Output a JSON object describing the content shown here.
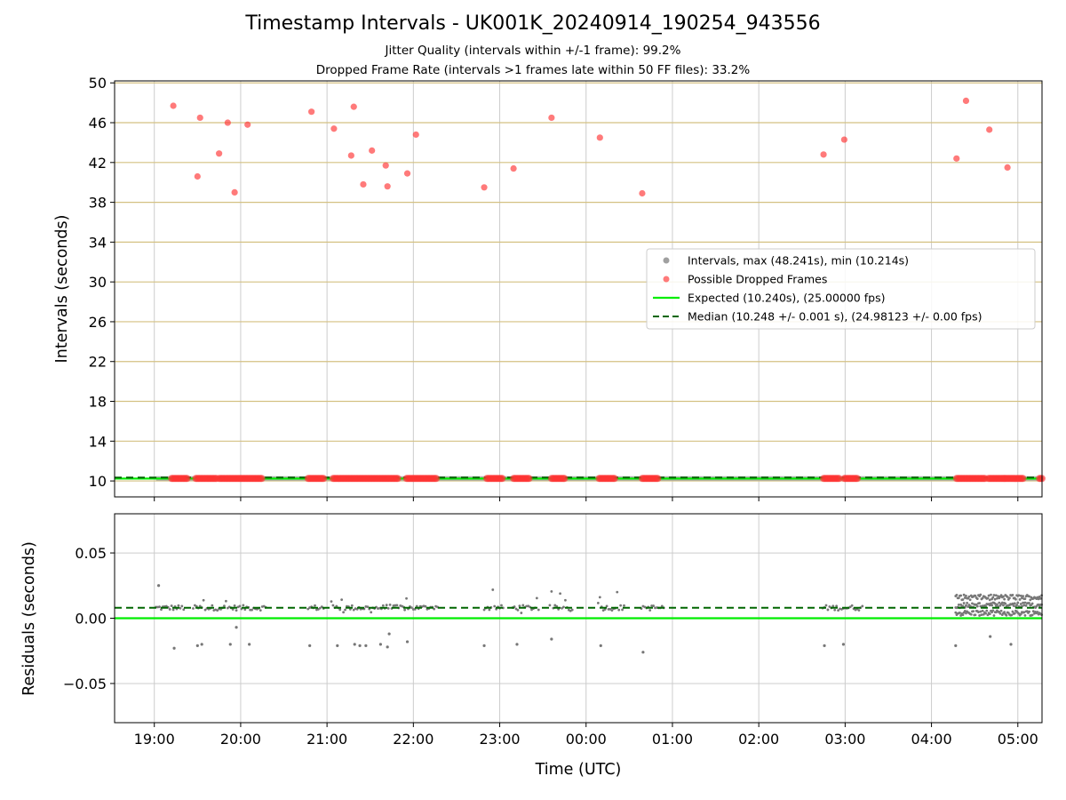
{
  "title": "Timestamp Intervals - UK001K_20240914_190254_943556",
  "subtitle_1": "Jitter Quality (intervals within +/-1 frame): 99.2%",
  "subtitle_2": "Dropped Frame Rate (intervals >1 frames late within 50 FF files): 33.2%",
  "colors": {
    "intervals": "#a0a0a0",
    "dropped": "#ff3333",
    "expected": "#00ee00",
    "median": "#006600",
    "residual_points": "#777777",
    "hgrid_top": "#d4c182",
    "grid": "#cccccc"
  },
  "chart_data": [
    {
      "type": "scatter",
      "panel": "top",
      "xlabel": "",
      "ylabel": "Intervals (seconds)",
      "x_unit": "hours after 19:00 UTC",
      "xlim": [
        -0.46,
        10.28
      ],
      "ylim": [
        8.4,
        50.2
      ],
      "yticks": [
        10,
        14,
        18,
        22,
        26,
        30,
        34,
        38,
        42,
        46,
        50
      ],
      "legend_position": "center-right",
      "legend": [
        {
          "label": "Intervals, max (48.241s), min (10.214s)",
          "marker": "grey-dot"
        },
        {
          "label": "Possible Dropped Frames",
          "marker": "red-dot"
        },
        {
          "label": "Expected (10.240s), (25.00000 fps)",
          "marker": "green-line"
        },
        {
          "label": "Median (10.248 +/- 0.001 s), (24.98123 +/- 0.00 fps)",
          "marker": "green-dashed"
        }
      ],
      "expected": 10.24,
      "median": 10.248,
      "interval_band": {
        "x_start": 0.02,
        "x_end": 10.28,
        "value": 10.25
      },
      "dropped_frames": [
        {
          "x": 0.22,
          "y": 47.7
        },
        {
          "x": 0.5,
          "y": 40.6
        },
        {
          "x": 0.53,
          "y": 46.5
        },
        {
          "x": 0.75,
          "y": 42.9
        },
        {
          "x": 0.85,
          "y": 46.0
        },
        {
          "x": 0.93,
          "y": 39.0
        },
        {
          "x": 1.08,
          "y": 45.8
        },
        {
          "x": 1.82,
          "y": 47.1
        },
        {
          "x": 2.08,
          "y": 45.4
        },
        {
          "x": 2.28,
          "y": 42.7
        },
        {
          "x": 2.31,
          "y": 47.6
        },
        {
          "x": 2.42,
          "y": 39.8
        },
        {
          "x": 2.52,
          "y": 43.2
        },
        {
          "x": 2.68,
          "y": 41.7
        },
        {
          "x": 2.7,
          "y": 39.6
        },
        {
          "x": 2.93,
          "y": 40.9
        },
        {
          "x": 3.03,
          "y": 44.8
        },
        {
          "x": 3.82,
          "y": 39.5
        },
        {
          "x": 4.16,
          "y": 41.4
        },
        {
          "x": 4.6,
          "y": 46.5
        },
        {
          "x": 5.16,
          "y": 44.5
        },
        {
          "x": 5.65,
          "y": 38.9
        },
        {
          "x": 7.75,
          "y": 42.8
        },
        {
          "x": 7.99,
          "y": 44.3
        },
        {
          "x": 9.29,
          "y": 42.4
        },
        {
          "x": 9.4,
          "y": 48.2
        },
        {
          "x": 9.67,
          "y": 45.3
        },
        {
          "x": 9.88,
          "y": 41.5
        }
      ],
      "dropped_near_expected_segments": [
        [
          0.2,
          0.38
        ],
        [
          0.48,
          0.72
        ],
        [
          0.75,
          1.25
        ],
        [
          1.78,
          1.97
        ],
        [
          2.07,
          2.27
        ],
        [
          2.28,
          2.83
        ],
        [
          2.92,
          3.27
        ],
        [
          3.85,
          4.03
        ],
        [
          4.16,
          4.35
        ],
        [
          4.6,
          4.75
        ],
        [
          5.15,
          5.33
        ],
        [
          5.65,
          5.83
        ],
        [
          7.75,
          7.93
        ],
        [
          7.99,
          8.14
        ],
        [
          9.29,
          9.62
        ],
        [
          9.66,
          9.85
        ],
        [
          9.85,
          10.06
        ],
        [
          10.25,
          10.28
        ]
      ]
    },
    {
      "type": "scatter",
      "panel": "bottom",
      "xlabel": "Time (UTC)",
      "ylabel": "Residuals (seconds)",
      "x_unit": "hours after 19:00 UTC",
      "xlim": [
        -0.46,
        10.28
      ],
      "ylim": [
        -0.08,
        0.08
      ],
      "yticks": [
        -0.05,
        0.0,
        0.05
      ],
      "ytick_labels": [
        "−0.05",
        "0.00",
        "0.05"
      ],
      "xtick_labels": [
        "19:00",
        "20:00",
        "21:00",
        "22:00",
        "23:00",
        "00:00",
        "01:00",
        "02:00",
        "03:00",
        "04:00",
        "05:00"
      ],
      "expected_residual": 0.0,
      "median_residual": 0.008,
      "clusters": [
        {
          "x_start": 0.02,
          "x_end": 0.35
        },
        {
          "x_start": 0.45,
          "x_end": 1.3
        },
        {
          "x_start": 1.78,
          "x_end": 1.98
        },
        {
          "x_start": 2.05,
          "x_end": 2.9
        },
        {
          "x_start": 2.9,
          "x_end": 3.3
        },
        {
          "x_start": 3.82,
          "x_end": 4.05
        },
        {
          "x_start": 4.15,
          "x_end": 4.45
        },
        {
          "x_start": 4.58,
          "x_end": 4.85
        },
        {
          "x_start": 5.14,
          "x_end": 5.45
        },
        {
          "x_start": 5.64,
          "x_end": 5.9
        },
        {
          "x_start": 7.74,
          "x_end": 8.2
        },
        {
          "x_start": 9.28,
          "x_end": 10.28
        }
      ],
      "outliers": [
        {
          "x": 0.05,
          "y": 0.025
        },
        {
          "x": 0.23,
          "y": -0.023
        },
        {
          "x": 0.5,
          "y": -0.021
        },
        {
          "x": 0.55,
          "y": -0.02
        },
        {
          "x": 0.88,
          "y": -0.02
        },
        {
          "x": 0.95,
          "y": -0.007
        },
        {
          "x": 1.1,
          "y": -0.02
        },
        {
          "x": 1.8,
          "y": -0.021
        },
        {
          "x": 2.12,
          "y": -0.021
        },
        {
          "x": 2.32,
          "y": -0.02
        },
        {
          "x": 2.38,
          "y": -0.021
        },
        {
          "x": 2.45,
          "y": -0.021
        },
        {
          "x": 2.62,
          "y": -0.02
        },
        {
          "x": 2.7,
          "y": -0.022
        },
        {
          "x": 2.72,
          "y": -0.012
        },
        {
          "x": 2.93,
          "y": -0.018
        },
        {
          "x": 3.82,
          "y": -0.021
        },
        {
          "x": 4.2,
          "y": -0.02
        },
        {
          "x": 4.6,
          "y": -0.016
        },
        {
          "x": 5.17,
          "y": -0.021
        },
        {
          "x": 5.66,
          "y": -0.026
        },
        {
          "x": 7.76,
          "y": -0.021
        },
        {
          "x": 7.98,
          "y": -0.02
        },
        {
          "x": 9.28,
          "y": -0.021
        },
        {
          "x": 9.68,
          "y": -0.014
        },
        {
          "x": 9.92,
          "y": -0.02
        }
      ]
    }
  ]
}
